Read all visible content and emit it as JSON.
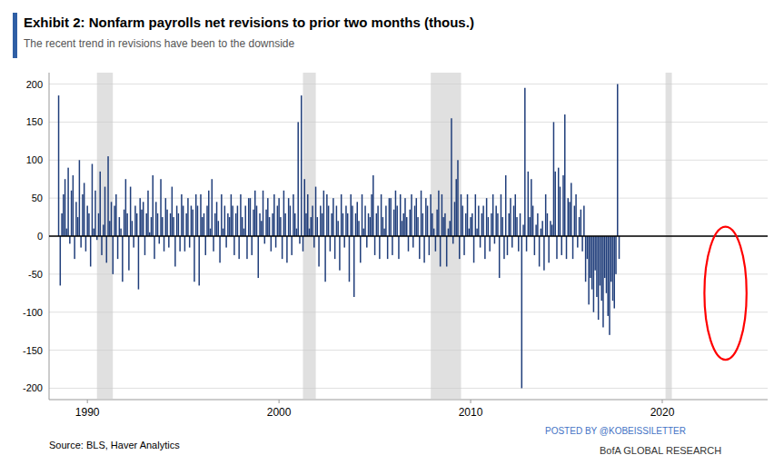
{
  "chart_data": {
    "type": "bar",
    "title": "Exhibit 2: Nonfarm payrolls net revisions to prior two months (thous.)",
    "subtitle": "The recent trend in revisions have been to the downside",
    "source": "Source: BLS, Haver Analytics",
    "posted_by": "POSTED BY @KOBEISSILETTER",
    "branding": "BofA GLOBAL RESEARCH",
    "color": "#1f3d7a",
    "recession_color": "#cccccc",
    "grid": true,
    "xlim": [
      1988.0,
      2025.5
    ],
    "ylim": [
      -215,
      215
    ],
    "xticks": [
      1990,
      2000,
      2010,
      2020
    ],
    "yticks": [
      -200,
      -150,
      -100,
      -50,
      0,
      50,
      100,
      150,
      200
    ],
    "recession_bands": [
      [
        1990.5,
        1991.33
      ],
      [
        2001.25,
        2001.92
      ],
      [
        2007.92,
        2009.5
      ],
      [
        2020.17,
        2020.5
      ]
    ],
    "ellipse": {
      "x_center": 2023.3,
      "y_center": -75,
      "width": 2.2,
      "height": 175,
      "color": "red"
    },
    "x": [
      1988.5,
      1988.5833,
      1988.6667,
      1988.75,
      1988.8333,
      1988.9167,
      1989,
      1989.0833,
      1989.1667,
      1989.25,
      1989.3333,
      1989.4167,
      1989.5,
      1989.5833,
      1989.6667,
      1989.75,
      1989.8333,
      1989.9167,
      1990,
      1990.0833,
      1990.1667,
      1990.25,
      1990.3333,
      1990.4167,
      1990.5,
      1990.5833,
      1990.6667,
      1990.75,
      1990.8333,
      1990.9167,
      1991,
      1991.0833,
      1991.1667,
      1991.25,
      1991.3333,
      1991.4167,
      1991.5,
      1991.5833,
      1991.6667,
      1991.75,
      1991.8333,
      1991.9167,
      1992,
      1992.0833,
      1992.1667,
      1992.25,
      1992.3333,
      1992.4167,
      1992.5,
      1992.5833,
      1992.6667,
      1992.75,
      1992.8333,
      1992.9167,
      1993,
      1993.0833,
      1993.1667,
      1993.25,
      1993.3333,
      1993.4167,
      1993.5,
      1993.5833,
      1993.6667,
      1993.75,
      1993.8333,
      1993.9167,
      1994,
      1994.0833,
      1994.1667,
      1994.25,
      1994.3333,
      1994.4167,
      1994.5,
      1994.5833,
      1994.6667,
      1994.75,
      1994.8333,
      1994.9167,
      1995,
      1995.0833,
      1995.1667,
      1995.25,
      1995.3333,
      1995.4167,
      1995.5,
      1995.5833,
      1995.6667,
      1995.75,
      1995.8333,
      1995.9167,
      1996,
      1996.0833,
      1996.1667,
      1996.25,
      1996.3333,
      1996.4167,
      1996.5,
      1996.5833,
      1996.6667,
      1996.75,
      1996.8333,
      1996.9167,
      1997,
      1997.0833,
      1997.1667,
      1997.25,
      1997.3333,
      1997.4167,
      1997.5,
      1997.5833,
      1997.6667,
      1997.75,
      1997.8333,
      1997.9167,
      1998,
      1998.0833,
      1998.1667,
      1998.25,
      1998.3333,
      1998.4167,
      1998.5,
      1998.5833,
      1998.6667,
      1998.75,
      1998.8333,
      1998.9167,
      1999,
      1999.0833,
      1999.1667,
      1999.25,
      1999.3333,
      1999.4167,
      1999.5,
      1999.5833,
      1999.6667,
      1999.75,
      1999.8333,
      1999.9167,
      2000,
      2000.0833,
      2000.1667,
      2000.25,
      2000.3333,
      2000.4167,
      2000.5,
      2000.5833,
      2000.6667,
      2000.75,
      2000.8333,
      2000.9167,
      2001,
      2001.0833,
      2001.1667,
      2001.25,
      2001.3333,
      2001.4167,
      2001.5,
      2001.5833,
      2001.6667,
      2001.75,
      2001.8333,
      2001.9167,
      2002,
      2002.0833,
      2002.1667,
      2002.25,
      2002.3333,
      2002.4167,
      2002.5,
      2002.5833,
      2002.6667,
      2002.75,
      2002.8333,
      2002.9167,
      2003,
      2003.0833,
      2003.1667,
      2003.25,
      2003.3333,
      2003.4167,
      2003.5,
      2003.5833,
      2003.6667,
      2003.75,
      2003.8333,
      2003.9167,
      2004,
      2004.0833,
      2004.1667,
      2004.25,
      2004.3333,
      2004.4167,
      2004.5,
      2004.5833,
      2004.6667,
      2004.75,
      2004.8333,
      2004.9167,
      2005,
      2005.0833,
      2005.1667,
      2005.25,
      2005.3333,
      2005.4167,
      2005.5,
      2005.5833,
      2005.6667,
      2005.75,
      2005.8333,
      2005.9167,
      2006,
      2006.0833,
      2006.1667,
      2006.25,
      2006.3333,
      2006.4167,
      2006.5,
      2006.5833,
      2006.6667,
      2006.75,
      2006.8333,
      2006.9167,
      2007,
      2007.0833,
      2007.1667,
      2007.25,
      2007.3333,
      2007.4167,
      2007.5,
      2007.5833,
      2007.6667,
      2007.75,
      2007.8333,
      2007.9167,
      2008,
      2008.0833,
      2008.1667,
      2008.25,
      2008.3333,
      2008.4167,
      2008.5,
      2008.5833,
      2008.6667,
      2008.75,
      2008.8333,
      2008.9167,
      2009,
      2009.0833,
      2009.1667,
      2009.25,
      2009.3333,
      2009.4167,
      2009.5,
      2009.5833,
      2009.6667,
      2009.75,
      2009.8333,
      2009.9167,
      2010,
      2010.0833,
      2010.1667,
      2010.25,
      2010.3333,
      2010.4167,
      2010.5,
      2010.5833,
      2010.6667,
      2010.75,
      2010.8333,
      2010.9167,
      2011,
      2011.0833,
      2011.1667,
      2011.25,
      2011.3333,
      2011.4167,
      2011.5,
      2011.5833,
      2011.6667,
      2011.75,
      2011.8333,
      2011.9167,
      2012,
      2012.0833,
      2012.1667,
      2012.25,
      2012.3333,
      2012.4167,
      2012.5,
      2012.5833,
      2012.6667,
      2012.75,
      2012.8333,
      2012.9167,
      2013,
      2013.0833,
      2013.1667,
      2013.25,
      2013.3333,
      2013.4167,
      2013.5,
      2013.5833,
      2013.6667,
      2013.75,
      2013.8333,
      2013.9167,
      2014,
      2014.0833,
      2014.1667,
      2014.25,
      2014.3333,
      2014.4167,
      2014.5,
      2014.5833,
      2014.6667,
      2014.75,
      2014.8333,
      2014.9167,
      2015,
      2015.0833,
      2015.1667,
      2015.25,
      2015.3333,
      2015.4167,
      2015.5,
      2015.5833,
      2015.6667,
      2015.75,
      2015.8333,
      2015.9167,
      2016,
      2016.0833,
      2016.1667,
      2016.25,
      2016.3333,
      2016.4167,
      2016.5,
      2016.5833,
      2016.6667,
      2016.75,
      2016.8333,
      2016.9167,
      2017,
      2017.0833,
      2017.1667,
      2017.25,
      2017.3333,
      2017.4167,
      2017.5,
      2017.5833,
      2017.6667,
      2017.75
    ],
    "values": [
      185,
      -65,
      30,
      55,
      75,
      10,
      90,
      -10,
      60,
      80,
      -30,
      45,
      25,
      100,
      -15,
      55,
      70,
      -20,
      40,
      30,
      -40,
      95,
      10,
      60,
      -5,
      30,
      85,
      -25,
      15,
      65,
      -35,
      105,
      20,
      45,
      -50,
      40,
      55,
      -30,
      25,
      10,
      -60,
      35,
      75,
      30,
      -45,
      65,
      20,
      -15,
      40,
      30,
      -70,
      50,
      35,
      45,
      -25,
      30,
      60,
      5,
      25,
      80,
      -30,
      45,
      30,
      -10,
      75,
      25,
      -20,
      50,
      35,
      -15,
      30,
      65,
      25,
      -40,
      40,
      30,
      -20,
      55,
      40,
      -20,
      30,
      50,
      -15,
      40,
      35,
      -60,
      55,
      40,
      -65,
      55,
      25,
      30,
      -25,
      40,
      60,
      10,
      75,
      -20,
      30,
      45,
      20,
      -35,
      55,
      10,
      40,
      -15,
      30,
      25,
      55,
      40,
      -25,
      30,
      40,
      -30,
      55,
      25,
      10,
      40,
      -30,
      50,
      50,
      -25,
      35,
      60,
      40,
      -55,
      30,
      20,
      60,
      -10,
      35,
      50,
      25,
      -20,
      30,
      55,
      -15,
      40,
      50,
      25,
      -30,
      60,
      30,
      -35,
      50,
      40,
      -25,
      55,
      30,
      10,
      150,
      -10,
      185,
      -20,
      75,
      30,
      55,
      10,
      25,
      40,
      -15,
      65,
      25,
      -40,
      40,
      30,
      60,
      -60,
      55,
      40,
      -20,
      30,
      50,
      -30,
      40,
      20,
      -45,
      55,
      30,
      -15,
      40,
      30,
      -60,
      55,
      40,
      -80,
      30,
      45,
      20,
      -35,
      55,
      10,
      40,
      -15,
      30,
      25,
      55,
      80,
      -25,
      30,
      40,
      -30,
      55,
      25,
      10,
      40,
      -30,
      50,
      50,
      -25,
      35,
      60,
      40,
      -30,
      55,
      20,
      30,
      50,
      25,
      -20,
      35,
      55,
      -15,
      40,
      50,
      25,
      -30,
      60,
      30,
      -35,
      50,
      40,
      -25,
      55,
      30,
      10,
      -20,
      35,
      60,
      -40,
      55,
      25,
      30,
      -40,
      10,
      20,
      155,
      -10,
      45,
      75,
      100,
      -30,
      55,
      40,
      -25,
      30,
      55,
      10,
      25,
      30,
      -35,
      55,
      10,
      40,
      -15,
      30,
      40,
      -30,
      50,
      25,
      -20,
      30,
      55,
      -10,
      40,
      30,
      -55,
      55,
      25,
      -30,
      80,
      -25,
      30,
      50,
      -15,
      40,
      55,
      25,
      -20,
      30,
      -200,
      15,
      195,
      -20,
      85,
      25,
      75,
      40,
      -25,
      15,
      30,
      -40,
      10,
      20,
      -45,
      55,
      30,
      -35,
      20,
      15,
      150,
      85,
      -30,
      90,
      65,
      -25,
      80,
      160,
      -30,
      50,
      45,
      70,
      -30,
      40,
      55,
      -15,
      25,
      35,
      -20,
      40,
      -60,
      -30,
      -90,
      -55,
      -70,
      -100,
      -45,
      -80,
      -110,
      -65,
      -85,
      -120,
      -55,
      -75,
      -105,
      -130,
      -60,
      -85,
      -95,
      -50,
      200,
      -30
    ]
  }
}
